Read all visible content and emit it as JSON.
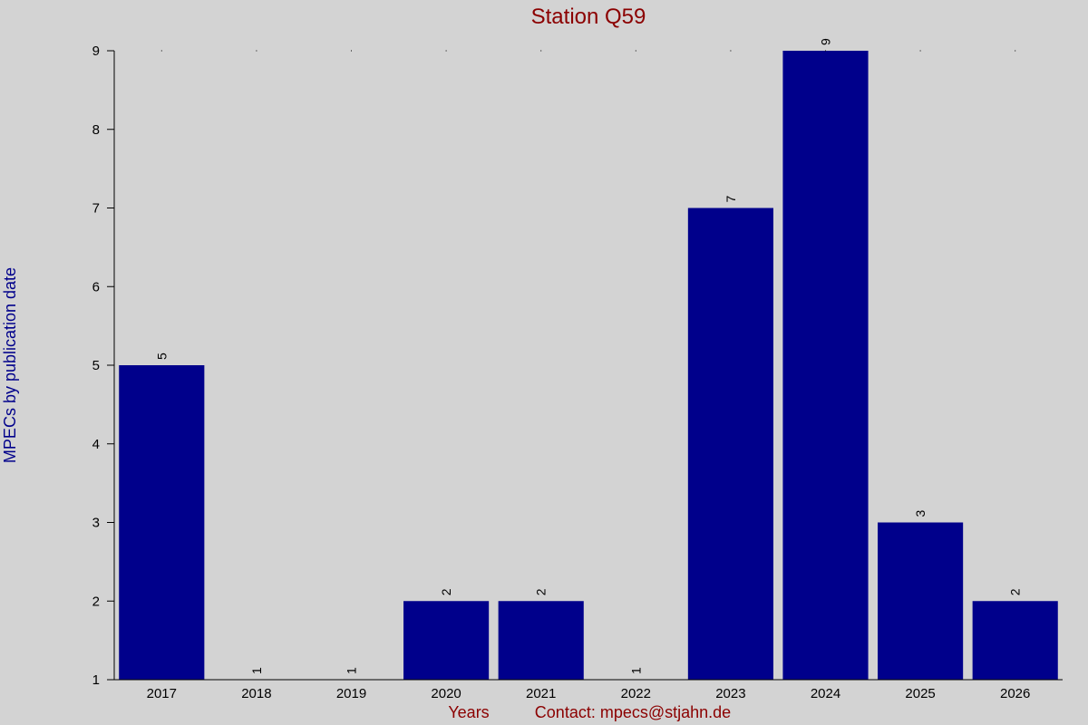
{
  "colors": {
    "background": "#d3d3d3",
    "bar": "#00008b",
    "title": "#8b0000",
    "ylabel": "#00008b",
    "xlabel": "#8b0000",
    "axis": "#000000"
  },
  "chart_data": {
    "type": "bar",
    "title": "Station Q59",
    "xlabel": "Years",
    "ylabel": "MPECs by publication date",
    "footer": "Contact: mpecs@stjahn.de",
    "categories": [
      "2017",
      "2018",
      "2019",
      "2020",
      "2021",
      "2022",
      "2023",
      "2024",
      "2025",
      "2026"
    ],
    "values": [
      5,
      1,
      1,
      2,
      2,
      1,
      7,
      9,
      3,
      2
    ],
    "ylim": [
      1,
      9
    ],
    "yticks": [
      1,
      2,
      3,
      4,
      5,
      6,
      7,
      8,
      9
    ],
    "grid": false,
    "data_labels": true
  }
}
